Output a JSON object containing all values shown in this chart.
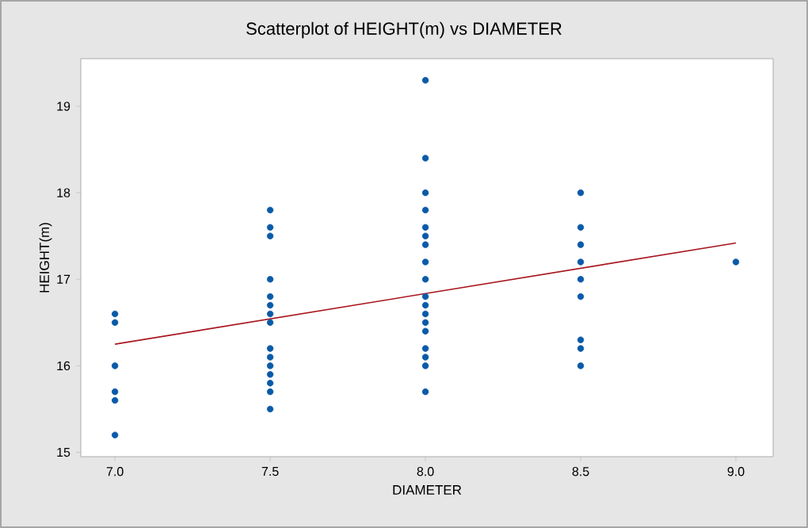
{
  "chart_data": {
    "type": "scatter",
    "title": "Scatterplot of HEIGHT(m) vs DIAMETER",
    "xlabel": "DIAMETER",
    "ylabel": "HEIGHT(m)",
    "xlim": [
      6.89,
      9.12
    ],
    "ylim": [
      14.95,
      19.55
    ],
    "xticks": [
      {
        "value": 7,
        "label": "7.0"
      },
      {
        "value": 7.5,
        "label": "7.5"
      },
      {
        "value": 8,
        "label": "8.0"
      },
      {
        "value": 8.5,
        "label": "8.5"
      },
      {
        "value": 9,
        "label": "9.0"
      }
    ],
    "yticks": [
      15,
      16,
      17,
      18,
      19
    ],
    "grid": false,
    "series": [
      {
        "color": "#0a5aa8",
        "marker": "circle",
        "x": [
          7,
          7,
          7,
          7,
          7,
          7,
          7.5,
          7.5,
          7.5,
          7.5,
          7.5,
          7.5,
          7.5,
          7.5,
          7.5,
          7.5,
          7.5,
          7.5,
          7.5,
          7.5,
          7.5,
          8,
          8,
          8,
          8,
          8,
          8,
          8,
          8,
          8,
          8,
          8,
          8,
          8,
          8,
          8,
          8,
          8,
          8,
          8.5,
          8.5,
          8.5,
          8.5,
          8.5,
          8.5,
          8.5,
          8.5,
          8.5,
          9
        ],
        "values": [
          16.6,
          16.5,
          16.0,
          15.7,
          15.6,
          15.2,
          17.8,
          17.6,
          17.5,
          17.0,
          16.8,
          16.7,
          16.6,
          16.5,
          16.2,
          16.1,
          16.0,
          15.9,
          15.8,
          15.7,
          15.5,
          19.3,
          18.4,
          18.0,
          17.8,
          17.6,
          17.5,
          17.4,
          17.2,
          17.0,
          16.8,
          16.7,
          16.6,
          16.5,
          16.4,
          16.2,
          16.1,
          16.0,
          15.7,
          18.0,
          17.6,
          17.4,
          17.2,
          17.0,
          16.8,
          16.3,
          16.2,
          16.0,
          17.2
        ]
      },
      {
        "type": "line",
        "color": "#a8161e",
        "marker": "none",
        "x": [
          7,
          9
        ],
        "values": [
          16.25,
          17.42
        ]
      }
    ]
  }
}
